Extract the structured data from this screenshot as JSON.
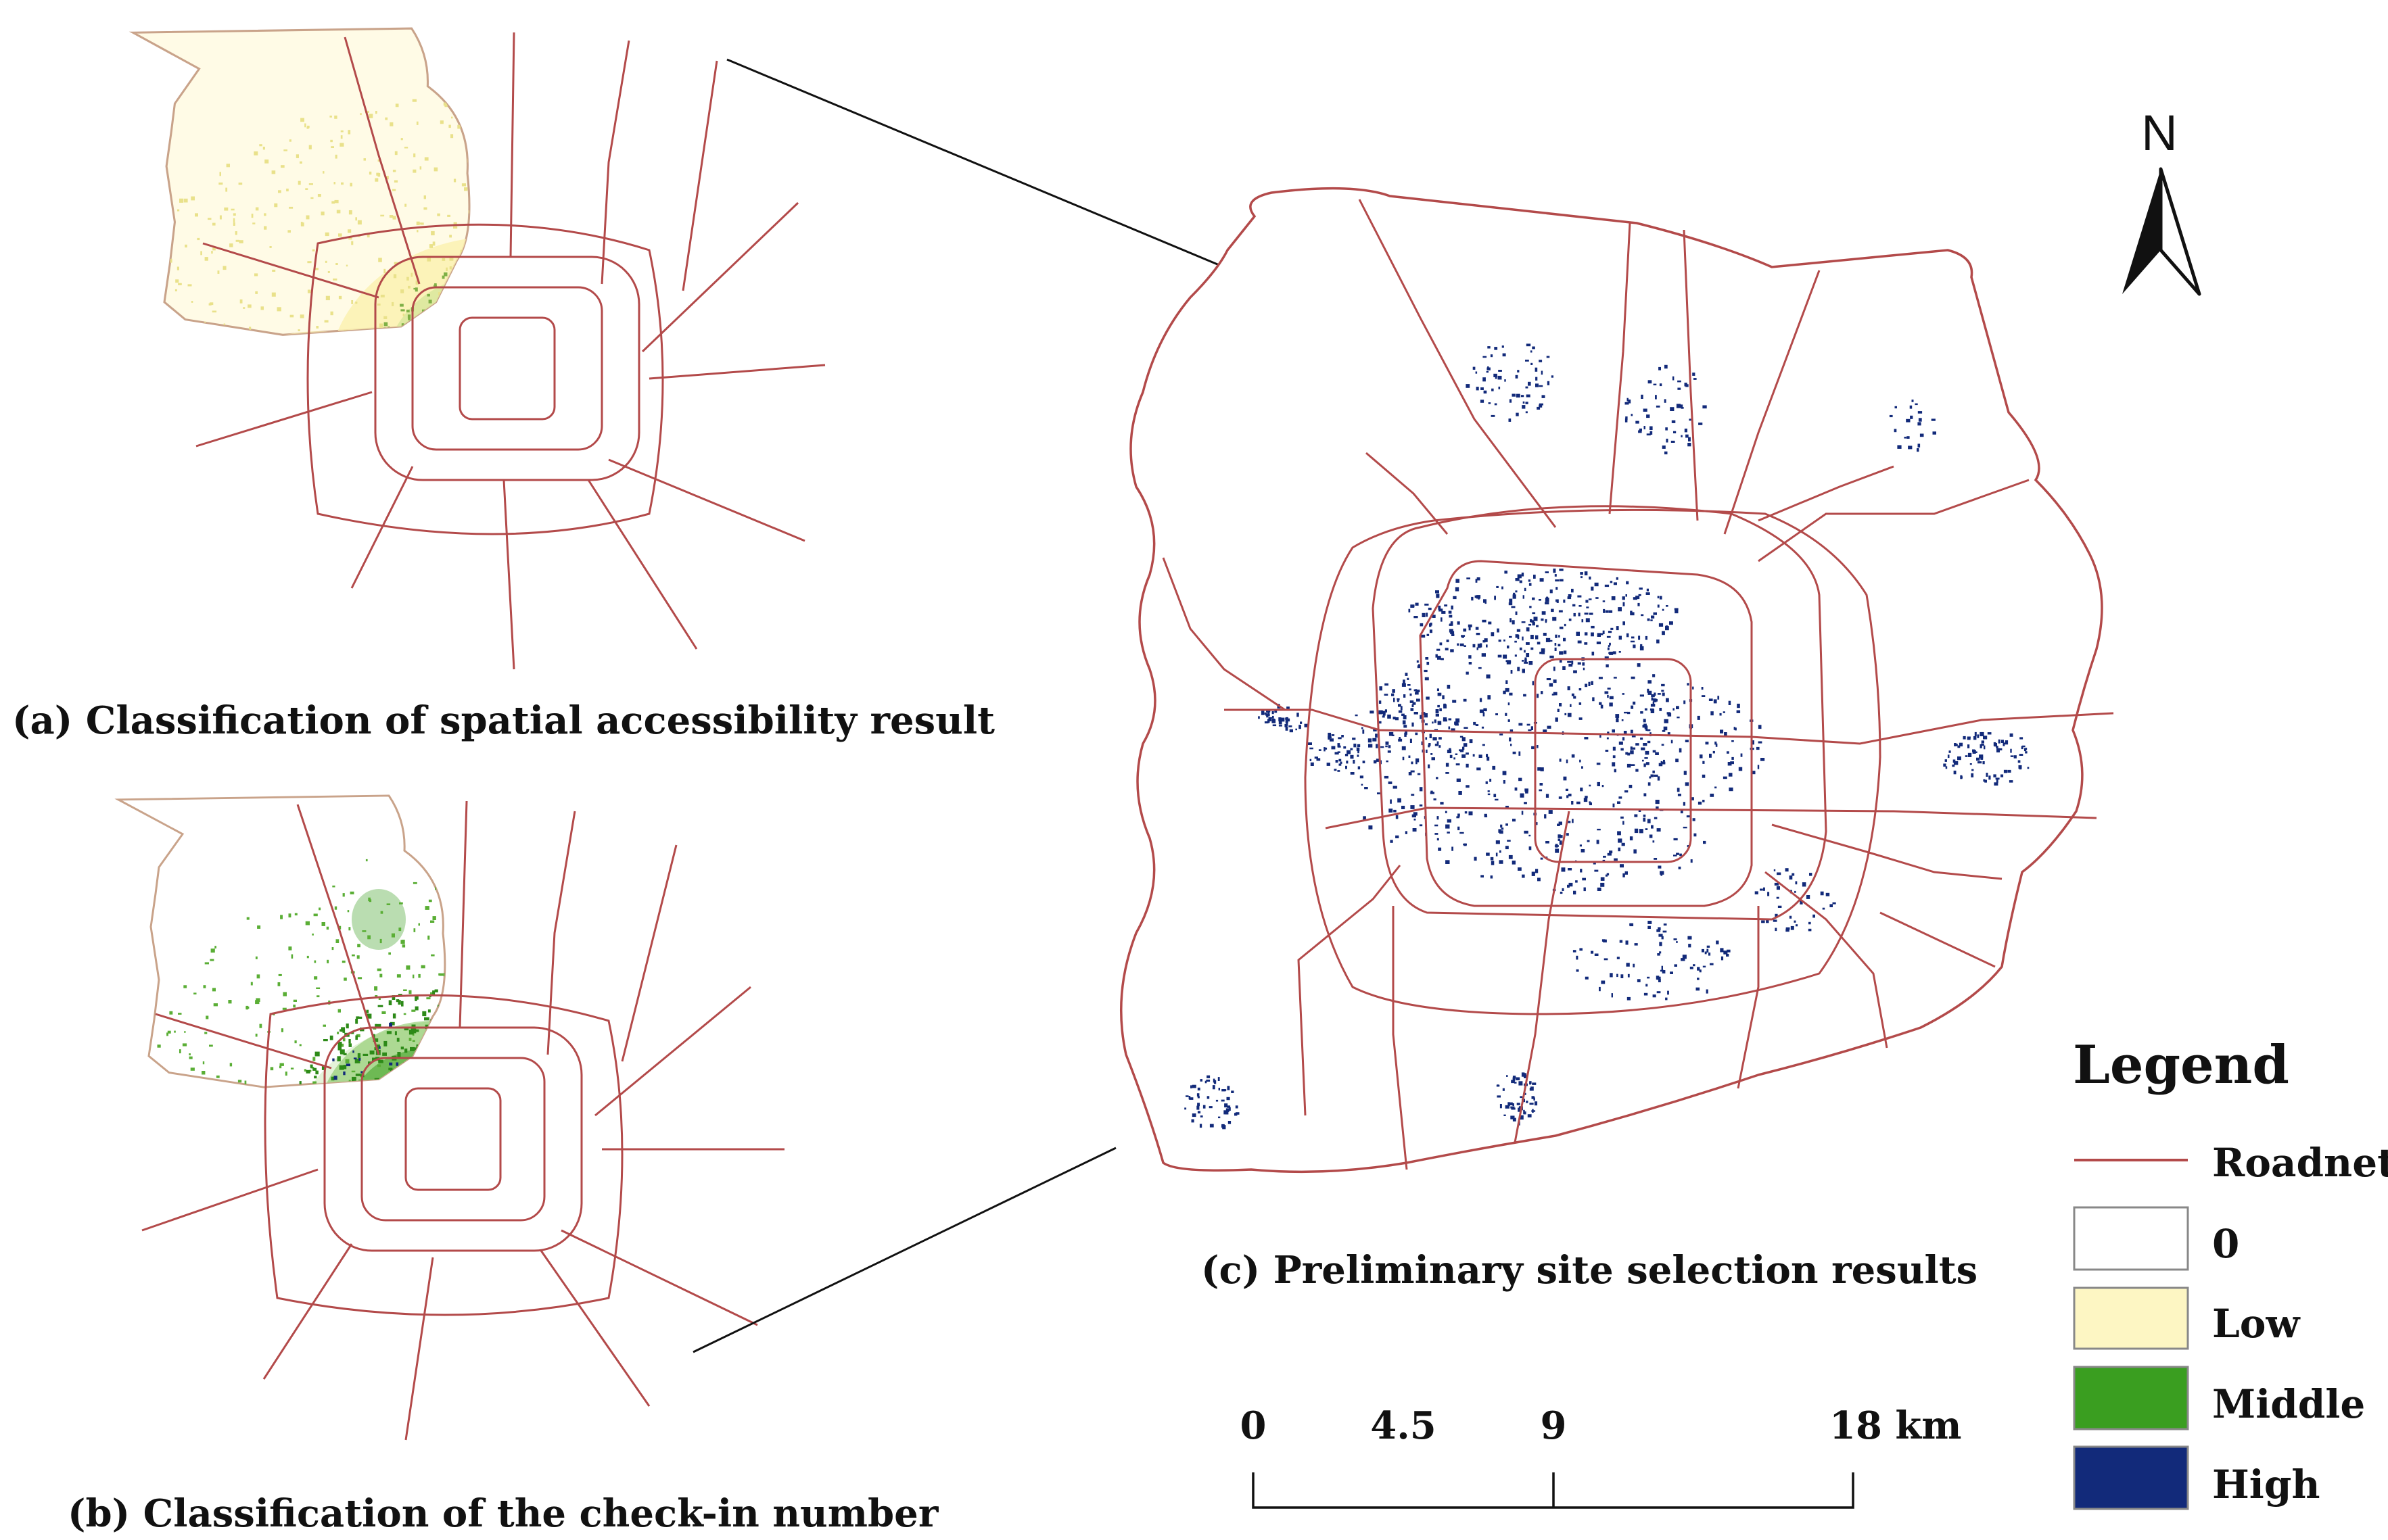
{
  "panels": {
    "a": {
      "caption": "(a) Classification of spatial  accessibility result"
    },
    "b": {
      "caption": "(b) Classification of the check-in number"
    },
    "c": {
      "caption": "(c) Preliminary site selection results"
    }
  },
  "north_arrow": {
    "label": "N"
  },
  "scale_bar": {
    "ticks": [
      "0",
      "4.5",
      "9",
      "18 km"
    ]
  },
  "legend": {
    "title": "Legend",
    "items": [
      {
        "label": "Roadnet",
        "type": "line",
        "color": "#b34a4a"
      },
      {
        "label": "0",
        "type": "box",
        "color": "#ffffff"
      },
      {
        "label": "Low",
        "type": "box",
        "color": "#fdf6c3"
      },
      {
        "label": "Middle",
        "type": "box",
        "color": "#3a9e20"
      },
      {
        "label": "High",
        "type": "box",
        "color": "#122a7a"
      }
    ]
  },
  "colors": {
    "road": "#b34a4a",
    "low": "#fdf6c3",
    "middle": "#3a9e20",
    "high": "#122a7a"
  }
}
